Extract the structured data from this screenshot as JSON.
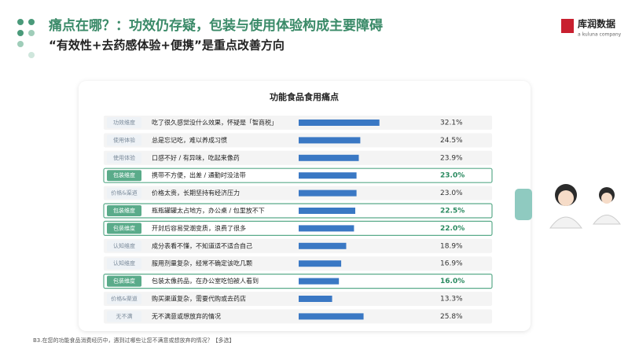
{
  "header": {
    "title": "痛点在哪？：功效仍存疑，包装与使用体验构成主要障碍",
    "subtitle": "“有效性+去药感体验+便携”是重点改善方向",
    "logo": "库润数据",
    "logo_tagline": "a kuluna company"
  },
  "chart_data": {
    "type": "bar",
    "orientation": "horizontal",
    "title": "功能食品食用痛点",
    "color": "#3a78c4",
    "dimensions": [
      "功效维度",
      "使用体验",
      "使用体验",
      "包装维度",
      "价格&渠道",
      "包装维度",
      "包装维度",
      "认知维度",
      "认知维度",
      "包装维度",
      "价格&渠道",
      "无不满"
    ],
    "highlighted": [
      false,
      false,
      false,
      true,
      false,
      true,
      true,
      false,
      false,
      true,
      false,
      false
    ],
    "categories": [
      "吃了很久感觉没什么效果，怀疑是「智商税」",
      "总是忘记吃，难以养成习惯",
      "口感不好 / 有异味，吃起来像药",
      "携带不方便，出差 / 通勤时没法带",
      "价格太贵，长期坚持有经济压力",
      "瓶瓶罐罐太占地方，办公桌 / 包里放不下",
      "开封后容易受潮变质，浪费了很多",
      "成分表看不懂，不知道适不适合自己",
      "服用剂量复杂，经常不确定该吃几颗",
      "包装太像药品，在办公室吃怕被人看到",
      "购买渠道复杂，需要代购或去药店",
      "无不满意或想放弃的情况"
    ],
    "values": [
      32.1,
      24.5,
      23.9,
      23.0,
      23.0,
      22.5,
      22.0,
      18.9,
      16.9,
      16.0,
      13.3,
      25.8
    ],
    "value_labels": [
      "32.1%",
      "24.5%",
      "23.9%",
      "23.0%",
      "23.0%",
      "22.5%",
      "22.0%",
      "18.9%",
      "16.9%",
      "16.0%",
      "13.3%",
      "25.8%"
    ]
  },
  "footnote": "B3.在您的功能食品消费经历中，遇到过哪些让您不满意或想放弃的情况？【多选】"
}
